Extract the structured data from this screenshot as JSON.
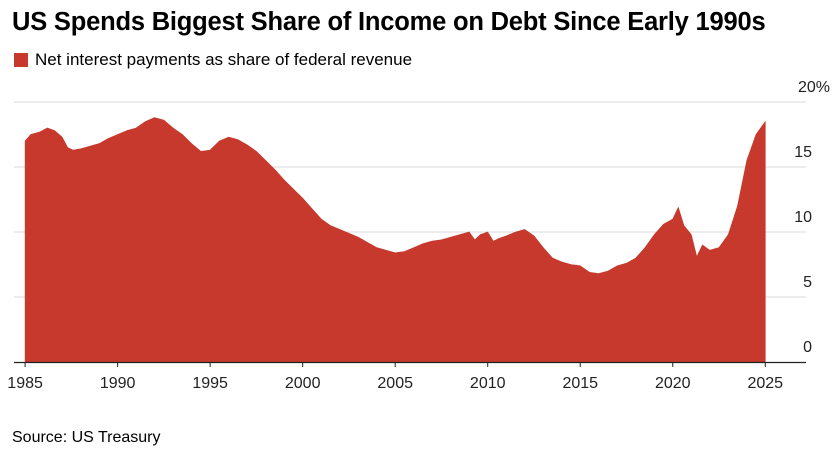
{
  "chart_data": {
    "type": "area",
    "title": "US Spends Biggest Share of Income on Debt Since Early 1990s",
    "legend": [
      {
        "name": "Net interest payments as share of federal revenue",
        "color": "#c6392c"
      }
    ],
    "source": "Source: US Treasury",
    "x_ticks": [
      "1985",
      "1990",
      "1995",
      "2000",
      "2005",
      "2010",
      "2015",
      "2020",
      "2025"
    ],
    "y_ticks": [
      "0",
      "5",
      "10",
      "15",
      "20%"
    ],
    "y_tick_values": [
      0,
      5,
      10,
      15,
      20
    ],
    "xlim": [
      1984.4,
      2027.2
    ],
    "ylim": [
      0,
      20
    ],
    "xlabel": "",
    "ylabel": "",
    "series": [
      {
        "name": "Net interest payments as share of federal revenue",
        "x": [
          1985.0,
          1985.3,
          1985.8,
          1986.2,
          1986.6,
          1987.0,
          1987.3,
          1987.6,
          1988.0,
          1988.5,
          1989.0,
          1989.5,
          1990.0,
          1990.5,
          1991.0,
          1991.5,
          1992.0,
          1992.5,
          1993.0,
          1993.5,
          1994.0,
          1994.5,
          1995.0,
          1995.5,
          1996.0,
          1996.5,
          1997.0,
          1997.5,
          1998.0,
          1998.5,
          1999.0,
          1999.5,
          2000.0,
          2000.5,
          2001.0,
          2001.5,
          2002.0,
          2002.5,
          2003.0,
          2003.5,
          2004.0,
          2004.5,
          2005.0,
          2005.5,
          2006.0,
          2006.5,
          2007.0,
          2007.5,
          2008.0,
          2008.5,
          2009.0,
          2009.3,
          2009.6,
          2010.0,
          2010.3,
          2010.6,
          2011.0,
          2011.5,
          2012.0,
          2012.5,
          2013.0,
          2013.5,
          2014.0,
          2014.5,
          2015.0,
          2015.5,
          2016.0,
          2016.5,
          2017.0,
          2017.5,
          2018.0,
          2018.5,
          2019.0,
          2019.5,
          2020.0,
          2020.3,
          2020.6,
          2021.0,
          2021.3,
          2021.6,
          2022.0,
          2022.5,
          2023.0,
          2023.5,
          2024.0,
          2024.5,
          2025.0
        ],
        "values": [
          17.0,
          17.5,
          17.7,
          18.0,
          17.8,
          17.3,
          16.5,
          16.3,
          16.4,
          16.6,
          16.8,
          17.2,
          17.5,
          17.8,
          18.0,
          18.5,
          18.8,
          18.6,
          18.0,
          17.5,
          16.8,
          16.2,
          16.3,
          17.0,
          17.3,
          17.1,
          16.7,
          16.2,
          15.5,
          14.8,
          14.0,
          13.3,
          12.6,
          11.8,
          11.0,
          10.5,
          10.2,
          9.9,
          9.6,
          9.2,
          8.8,
          8.6,
          8.4,
          8.5,
          8.8,
          9.1,
          9.3,
          9.4,
          9.6,
          9.8,
          10.0,
          9.4,
          9.8,
          10.0,
          9.3,
          9.5,
          9.7,
          10.0,
          10.2,
          9.7,
          8.8,
          8.0,
          7.7,
          7.5,
          7.4,
          6.9,
          6.8,
          7.0,
          7.4,
          7.6,
          8.0,
          8.8,
          9.8,
          10.6,
          11.0,
          11.9,
          10.5,
          9.8,
          8.1,
          9.0,
          8.6,
          8.8,
          9.8,
          12.0,
          15.5,
          17.5,
          18.5
        ]
      }
    ]
  }
}
